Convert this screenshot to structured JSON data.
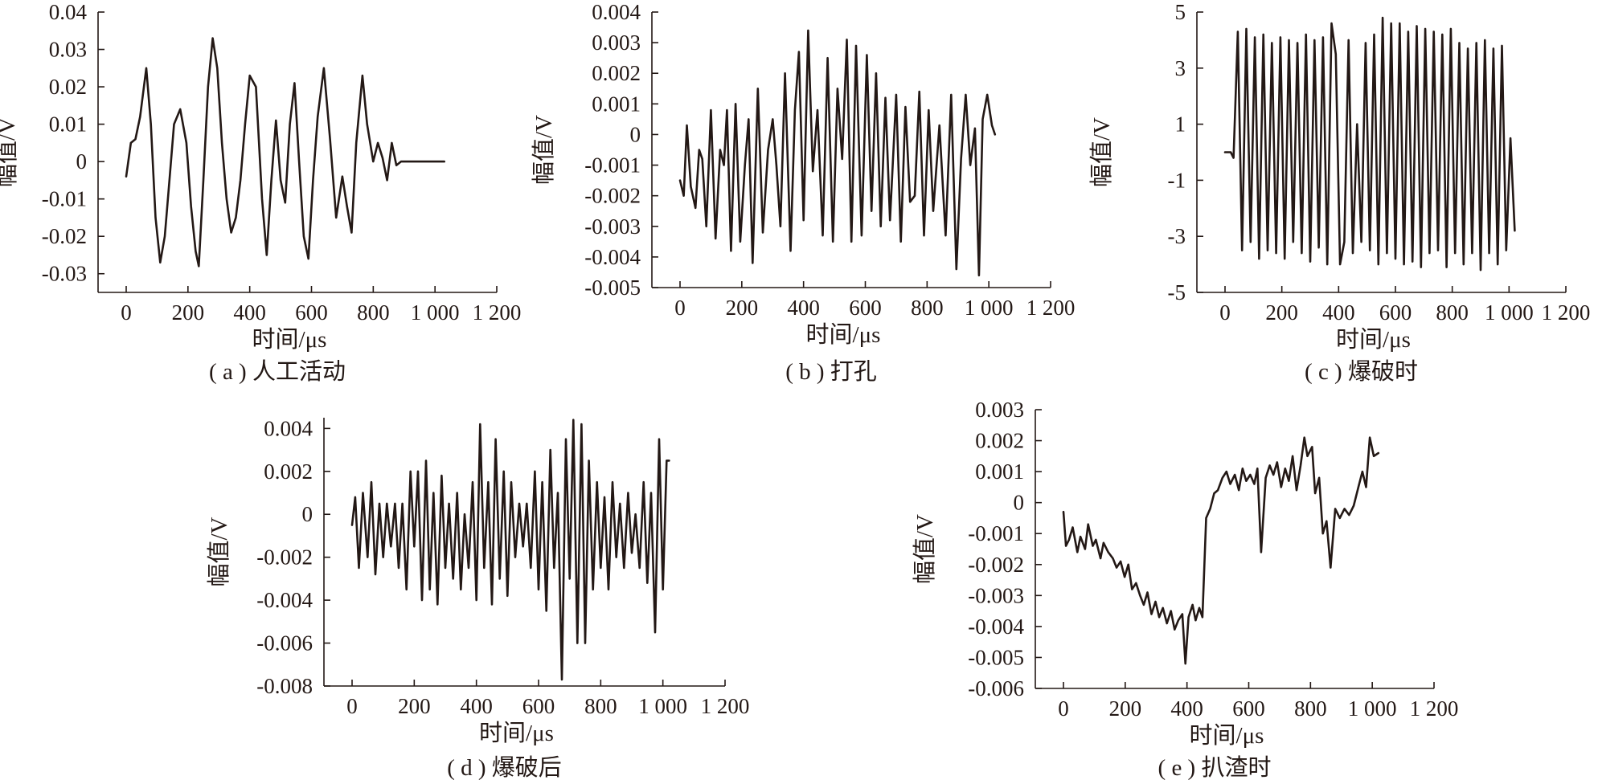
{
  "chart_data": [
    {
      "type": "line",
      "caption": "( a ) 人工活动",
      "xlabel": "时间/μs",
      "ylabel": "幅值/V",
      "xlim": [
        0,
        1200
      ],
      "ylim": [
        -0.035,
        0.04
      ],
      "xticks": [
        "0",
        "200",
        "400",
        "600",
        "800",
        "1 000",
        "1 200"
      ],
      "yticks": [
        "0.04",
        "0.03",
        "0.02",
        "0.01",
        "0",
        "-0.01",
        "-0.02",
        "-0.03"
      ],
      "ytick_values": [
        0.04,
        0.03,
        0.02,
        0.01,
        0,
        -0.01,
        -0.02,
        -0.03
      ],
      "series": [
        {
          "x": [
            0,
            15,
            30,
            45,
            65,
            80,
            95,
            110,
            125,
            140,
            155,
            175,
            195,
            210,
            225,
            235,
            250,
            265,
            280,
            295,
            310,
            325,
            340,
            355,
            370,
            385,
            400,
            420,
            440,
            455,
            470,
            485,
            500,
            515,
            530,
            545,
            560,
            575,
            590,
            605,
            620,
            640,
            660,
            680,
            700,
            715,
            730,
            745,
            765,
            780,
            800,
            815,
            830,
            845,
            860,
            875,
            890,
            910,
            950,
            1030
          ],
          "y": [
            -0.004,
            0.005,
            0.006,
            0.012,
            0.025,
            0.01,
            -0.015,
            -0.027,
            -0.02,
            -0.005,
            0.01,
            0.014,
            0.005,
            -0.012,
            -0.024,
            -0.028,
            -0.005,
            0.02,
            0.033,
            0.025,
            0.005,
            -0.01,
            -0.019,
            -0.015,
            -0.005,
            0.01,
            0.023,
            0.02,
            -0.01,
            -0.025,
            -0.005,
            0.011,
            -0.005,
            -0.011,
            0.01,
            0.021,
            0.0,
            -0.02,
            -0.026,
            -0.005,
            0.012,
            0.025,
            0.006,
            -0.015,
            -0.004,
            -0.012,
            -0.019,
            0.005,
            0.023,
            0.01,
            0.0,
            0.005,
            0.001,
            -0.005,
            0.005,
            -0.001,
            0.0,
            0.0,
            0.0,
            0.0
          ]
        }
      ]
    },
    {
      "type": "line",
      "caption": "( b ) 打孔",
      "xlabel": "时间/μs",
      "ylabel": "幅值/V",
      "xlim": [
        0,
        1200
      ],
      "ylim": [
        -0.005,
        0.004
      ],
      "xticks": [
        "0",
        "200",
        "400",
        "600",
        "800",
        "1 000",
        "1 200"
      ],
      "yticks": [
        "0.004",
        "0.003",
        "0.002",
        "0.001",
        "0",
        "-0.001",
        "-0.002",
        "-0.003",
        "-0.004",
        "-0.005"
      ],
      "ytick_values": [
        0.004,
        0.003,
        0.002,
        0.001,
        0,
        -0.001,
        -0.002,
        -0.003,
        -0.004,
        -0.005
      ],
      "series": [
        {
          "x": [
            0,
            12,
            22,
            35,
            50,
            62,
            72,
            85,
            100,
            115,
            130,
            142,
            152,
            165,
            180,
            195,
            210,
            222,
            235,
            252,
            268,
            285,
            300,
            312,
            325,
            340,
            358,
            372,
            385,
            400,
            415,
            430,
            445,
            462,
            478,
            495,
            510,
            525,
            540,
            555,
            570,
            588,
            605,
            620,
            635,
            650,
            665,
            680,
            700,
            715,
            730,
            745,
            760,
            775,
            790,
            805,
            820,
            840,
            860,
            878,
            895,
            910,
            925,
            940,
            955,
            968,
            980,
            995,
            1010,
            1020
          ],
          "y": [
            -0.0015,
            -0.002,
            0.0003,
            -0.0017,
            -0.0024,
            -0.0005,
            -0.0008,
            -0.003,
            0.0008,
            -0.0034,
            -0.0005,
            -0.001,
            0.0008,
            -0.0038,
            0.001,
            -0.0035,
            -0.001,
            0.0005,
            -0.0042,
            0.0015,
            -0.0032,
            -0.0005,
            0.0005,
            -0.001,
            -0.003,
            0.002,
            -0.0038,
            0.0008,
            0.0027,
            -0.0028,
            0.0034,
            -0.0012,
            0.0008,
            -0.0033,
            0.0025,
            -0.0035,
            0.0015,
            -0.0008,
            0.0031,
            -0.0035,
            0.0029,
            -0.0033,
            0.0026,
            -0.0025,
            0.002,
            -0.003,
            0.0012,
            -0.0028,
            0.0013,
            -0.0035,
            0.0009,
            -0.0022,
            -0.002,
            0.0014,
            -0.0033,
            0.0008,
            -0.0025,
            0.0003,
            -0.0033,
            0.0013,
            -0.0044,
            -0.0008,
            0.0013,
            -0.001,
            0.0002,
            -0.0046,
            0.0005,
            0.0013,
            0.0003,
            0.0
          ]
        }
      ]
    },
    {
      "type": "line",
      "caption": "( c ) 爆破时",
      "xlabel": "时间/μs",
      "ylabel": "幅值/V",
      "xlim": [
        0,
        1200
      ],
      "ylim": [
        -5,
        5
      ],
      "xticks": [
        "0",
        "200",
        "400",
        "600",
        "800",
        "1 000",
        "1 200"
      ],
      "yticks": [
        "5",
        "3",
        "1",
        "-1",
        "-3",
        "-5"
      ],
      "ytick_values": [
        5,
        3,
        1,
        -1,
        -3,
        -5
      ],
      "series": [
        {
          "x": [
            0,
            20,
            30,
            45,
            60,
            75,
            90,
            105,
            120,
            135,
            150,
            165,
            180,
            195,
            210,
            225,
            240,
            255,
            270,
            285,
            300,
            315,
            330,
            345,
            360,
            375,
            390,
            405,
            420,
            435,
            450,
            465,
            480,
            495,
            510,
            525,
            540,
            555,
            570,
            585,
            600,
            615,
            630,
            645,
            660,
            675,
            690,
            705,
            720,
            735,
            750,
            765,
            780,
            795,
            810,
            825,
            840,
            855,
            870,
            885,
            900,
            915,
            930,
            945,
            960,
            975,
            990,
            1005,
            1020
          ],
          "y": [
            0,
            0,
            -0.2,
            4.3,
            -3.5,
            4.4,
            -3.2,
            4.1,
            -3.8,
            4.2,
            -3.5,
            3.9,
            -3.6,
            4.1,
            -3.8,
            4.0,
            -3.2,
            3.9,
            -3.6,
            4.2,
            -3.9,
            4.0,
            -3.4,
            4.1,
            -4.0,
            4.6,
            3.5,
            -4.0,
            -3.2,
            4.0,
            -3.6,
            1.0,
            -3.2,
            3.9,
            -3.5,
            4.2,
            -4.0,
            4.8,
            -3.6,
            4.6,
            -3.8,
            4.6,
            -4.0,
            4.3,
            -3.9,
            4.5,
            -4.1,
            4.4,
            -3.6,
            4.3,
            -3.5,
            4.2,
            -4.1,
            4.4,
            -3.6,
            3.9,
            -4.0,
            3.7,
            -3.6,
            3.9,
            -4.2,
            4.0,
            -3.6,
            3.7,
            -4.0,
            3.8,
            -3.5,
            0.5,
            -2.8
          ]
        }
      ]
    },
    {
      "type": "line",
      "caption": "( d ) 爆破后",
      "xlabel": "时间/μs",
      "ylabel": "幅值/V",
      "xlim": [
        0,
        1200
      ],
      "ylim": [
        -0.008,
        0.0045
      ],
      "xticks": [
        "0",
        "200",
        "400",
        "600",
        "800",
        "1 000",
        "1 200"
      ],
      "yticks": [
        "0.004",
        "0.002",
        "0",
        "-0.002",
        "-0.004",
        "-0.006",
        "-0.008"
      ],
      "ytick_values": [
        0.004,
        0.002,
        0,
        -0.002,
        -0.004,
        -0.006,
        -0.008
      ],
      "series": [
        {
          "x": [
            0,
            10,
            22,
            35,
            50,
            62,
            75,
            88,
            100,
            112,
            125,
            138,
            150,
            162,
            175,
            188,
            200,
            212,
            225,
            238,
            250,
            262,
            275,
            288,
            300,
            312,
            325,
            338,
            350,
            362,
            375,
            388,
            400,
            412,
            425,
            438,
            450,
            462,
            475,
            488,
            500,
            512,
            525,
            538,
            550,
            562,
            575,
            588,
            600,
            612,
            625,
            638,
            650,
            662,
            675,
            688,
            700,
            712,
            725,
            738,
            750,
            762,
            775,
            788,
            800,
            812,
            825,
            838,
            850,
            862,
            875,
            888,
            900,
            912,
            925,
            938,
            950,
            962,
            975,
            988,
            1000,
            1012,
            1020
          ],
          "y": [
            -0.0005,
            0.0008,
            -0.0025,
            0.001,
            -0.002,
            0.0015,
            -0.0028,
            0.0005,
            -0.002,
            0.0005,
            -0.0015,
            0.0005,
            -0.0025,
            0.0005,
            -0.0035,
            0.002,
            -0.0015,
            0.002,
            -0.004,
            0.0025,
            -0.0035,
            0.001,
            -0.0042,
            0.0018,
            -0.0025,
            0.0005,
            -0.003,
            0.001,
            -0.0035,
            0.0,
            -0.0025,
            0.0015,
            -0.004,
            0.0042,
            -0.0025,
            0.0015,
            -0.0042,
            0.0035,
            -0.003,
            0.002,
            -0.0038,
            0.0015,
            -0.002,
            0.0005,
            -0.0015,
            0.0005,
            -0.0025,
            0.002,
            -0.0035,
            0.0015,
            -0.0045,
            0.003,
            -0.0025,
            0.001,
            -0.0077,
            0.0035,
            -0.003,
            0.0044,
            -0.006,
            0.0042,
            -0.006,
            0.0025,
            -0.0035,
            0.0015,
            -0.0025,
            0.0008,
            -0.0035,
            0.0015,
            -0.002,
            0.0005,
            -0.0025,
            0.001,
            -0.0018,
            0.0,
            -0.0025,
            0.0015,
            -0.0032,
            0.001,
            -0.0055,
            0.0035,
            -0.0035,
            0.0025,
            0.0025
          ]
        }
      ]
    },
    {
      "type": "line",
      "caption": "( e ) 扒渣时",
      "xlabel": "时间/μs",
      "ylabel": "幅值/V",
      "xlim": [
        0,
        1200
      ],
      "ylim": [
        -0.006,
        0.003
      ],
      "xticks": [
        "0",
        "200",
        "400",
        "600",
        "800",
        "1 000",
        "1 200"
      ],
      "yticks": [
        "0.003",
        "0.002",
        "0.001",
        "0",
        "-0.001",
        "-0.002",
        "-0.003",
        "-0.004",
        "-0.005",
        "-0.006"
      ],
      "ytick_values": [
        0.003,
        0.002,
        0.001,
        0,
        -0.001,
        -0.002,
        -0.003,
        -0.004,
        -0.005,
        -0.006
      ],
      "series": [
        {
          "x": [
            0,
            8,
            18,
            30,
            45,
            55,
            70,
            80,
            95,
            105,
            120,
            130,
            145,
            160,
            172,
            185,
            198,
            210,
            222,
            235,
            248,
            260,
            272,
            285,
            298,
            310,
            322,
            335,
            348,
            360,
            372,
            385,
            395,
            405,
            418,
            428,
            440,
            450,
            462,
            475,
            488,
            500,
            515,
            528,
            540,
            555,
            568,
            580,
            592,
            605,
            618,
            628,
            640,
            655,
            668,
            680,
            692,
            705,
            718,
            730,
            742,
            755,
            768,
            780,
            790,
            805,
            815,
            828,
            840,
            852,
            865,
            880,
            895,
            910,
            925,
            940,
            955,
            968,
            980,
            992,
            1005,
            1020
          ],
          "y": [
            -0.0003,
            -0.0014,
            -0.0012,
            -0.0008,
            -0.0016,
            -0.0011,
            -0.0015,
            -0.0007,
            -0.0014,
            -0.0012,
            -0.0018,
            -0.0013,
            -0.0016,
            -0.0018,
            -0.0021,
            -0.0019,
            -0.0024,
            -0.002,
            -0.0028,
            -0.0026,
            -0.003,
            -0.0033,
            -0.0029,
            -0.0036,
            -0.0032,
            -0.0037,
            -0.0034,
            -0.0039,
            -0.0035,
            -0.0041,
            -0.0038,
            -0.0036,
            -0.0052,
            -0.0037,
            -0.0033,
            -0.0038,
            -0.0034,
            -0.0037,
            -0.0005,
            -0.0002,
            0.0003,
            0.0004,
            0.0008,
            0.001,
            0.0006,
            0.0009,
            0.0004,
            0.0011,
            0.0007,
            0.0009,
            0.0006,
            0.0011,
            -0.0016,
            0.0008,
            0.0012,
            0.0009,
            0.0013,
            0.0005,
            0.0011,
            0.0007,
            0.0015,
            0.0004,
            0.0012,
            0.0021,
            0.0015,
            0.0018,
            0.0003,
            0.0008,
            -0.001,
            -0.0006,
            -0.0021,
            -0.0002,
            -0.0005,
            -0.0002,
            -0.0004,
            -0.0001,
            0.0005,
            0.001,
            0.0005,
            0.0021,
            0.0015,
            0.0016
          ]
        }
      ]
    }
  ]
}
